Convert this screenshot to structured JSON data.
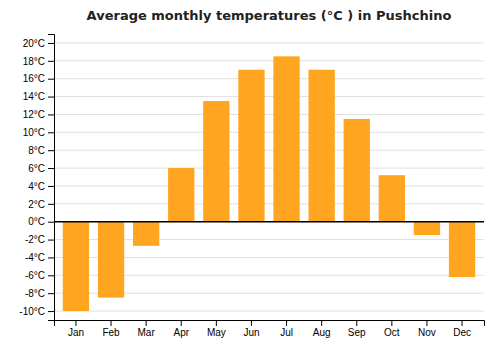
{
  "chart_data": {
    "type": "bar",
    "title": "Average monthly temperatures (°C ) in Pushchino",
    "categories": [
      "Jan",
      "Feb",
      "Mar",
      "Apr",
      "May",
      "Jun",
      "Jul",
      "Aug",
      "Sep",
      "Oct",
      "Nov",
      "Dec"
    ],
    "values": [
      -10,
      -8.5,
      -2.7,
      6.0,
      13.5,
      17.0,
      18.5,
      17.0,
      11.5,
      5.2,
      -1.5,
      -6.2
    ],
    "color": "#FFA520",
    "ylim": [
      -11,
      21
    ],
    "yticks": [
      {
        "value": -10,
        "label": "-10°C"
      },
      {
        "value": -8,
        "label": "-8°C"
      },
      {
        "value": -6,
        "label": "-6°C"
      },
      {
        "value": -4,
        "label": "-4°C"
      },
      {
        "value": -2,
        "label": "-2°C"
      },
      {
        "value": 0,
        "label": "0°C"
      },
      {
        "value": 2,
        "label": "2°C"
      },
      {
        "value": 4,
        "label": "4°C"
      },
      {
        "value": 6,
        "label": "6°C"
      },
      {
        "value": 8,
        "label": "8°C"
      },
      {
        "value": 10,
        "label": "10°C"
      },
      {
        "value": 12,
        "label": "12°C"
      },
      {
        "value": 14,
        "label": "14°C"
      },
      {
        "value": 16,
        "label": "16°C"
      },
      {
        "value": 18,
        "label": "18°C"
      },
      {
        "value": 20,
        "label": "20°C"
      }
    ],
    "grid": true
  }
}
